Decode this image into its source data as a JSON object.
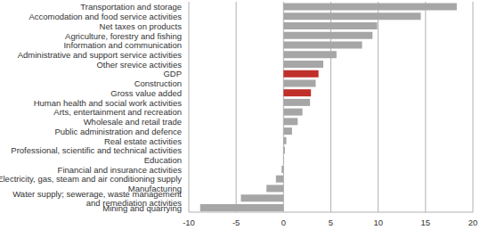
{
  "chart_data": {
    "type": "bar",
    "orientation": "horizontal",
    "categories": [
      "Transportation and storage",
      "Accomodation and food service activities",
      "Net taxes on products",
      "Agriculture, forestry and fishing",
      "Information and communication",
      "Administrative and support service activities",
      "Other srevice activities",
      "GDP",
      "Construction",
      "Gross value added",
      "Human health and social work activities",
      "Arts, entertainment and recreation",
      "Wholesale and retail trade",
      "Public administration and defence",
      "Real estate activities",
      "Professional, scientific and technical activities",
      "Education",
      "Financial and insurance activities",
      "Electricity, gas, steam and air conditioning supply",
      "Manufacturing",
      "Water supply; sewerage, waste management\nand remediation activities",
      "Mining and quarrying"
    ],
    "values": [
      18.3,
      14.5,
      9.9,
      9.4,
      8.3,
      5.6,
      4.2,
      3.7,
      3.4,
      2.9,
      2.8,
      2.0,
      1.5,
      0.9,
      0.3,
      0.15,
      0.05,
      -0.2,
      -0.8,
      -1.8,
      -4.5,
      -8.8
    ],
    "colors": [
      "#a6a6a6",
      "#a6a6a6",
      "#a6a6a6",
      "#a6a6a6",
      "#a6a6a6",
      "#a6a6a6",
      "#a6a6a6",
      "#c0302a",
      "#a6a6a6",
      "#c0302a",
      "#a6a6a6",
      "#a6a6a6",
      "#a6a6a6",
      "#a6a6a6",
      "#a6a6a6",
      "#a6a6a6",
      "#a6a6a6",
      "#a6a6a6",
      "#a6a6a6",
      "#a6a6a6",
      "#a6a6a6",
      "#a6a6a6"
    ],
    "xlim": [
      -10,
      20
    ],
    "xticks": [
      -10,
      -5,
      0,
      5,
      10,
      15,
      20
    ],
    "grid": true
  }
}
